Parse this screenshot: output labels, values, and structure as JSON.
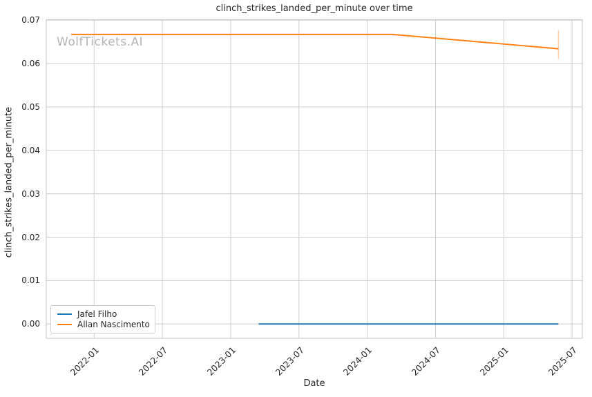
{
  "watermark": "WolfTickets.AI",
  "colors": {
    "grid": "#cccccc",
    "axes_edge": "#cccccc",
    "text": "#262626",
    "watermark": "#b4b4b4",
    "background": "#ffffff"
  },
  "chart_data": {
    "type": "line",
    "title": "clinch_strikes_landed_per_minute over time",
    "xlabel": "Date",
    "ylabel": "clinch_strikes_landed_per_minute",
    "grid": true,
    "legend_position": "lower left",
    "x_ticks": [
      "2022-01",
      "2022-07",
      "2023-01",
      "2023-07",
      "2024-01",
      "2024-07",
      "2025-01",
      "2025-07"
    ],
    "y_ticks": [
      "0.00",
      "0.01",
      "0.02",
      "0.03",
      "0.04",
      "0.05",
      "0.06",
      "0.07"
    ],
    "xlim_months_from_2022_01": [
      -4.2,
      42.9
    ],
    "ylim": [
      -0.0033,
      0.0701
    ],
    "series": [
      {
        "name": "Jafel Filho",
        "color": "#1f77b4",
        "points": [
          {
            "date": "2023-03-15",
            "value": 0.0
          },
          {
            "date": "2025-05-25",
            "value": 0.0
          }
        ]
      },
      {
        "name": "Allan Nascimento",
        "color": "#ff7f0e",
        "points": [
          {
            "date": "2021-11-01",
            "value": 0.0667
          },
          {
            "date": "2024-03-08",
            "value": 0.0667
          },
          {
            "date": "2025-05-25",
            "value": 0.0634
          }
        ],
        "error_bars": [
          {
            "date": "2025-05-25",
            "y_low": 0.061,
            "y_high": 0.0677
          }
        ]
      }
    ]
  }
}
